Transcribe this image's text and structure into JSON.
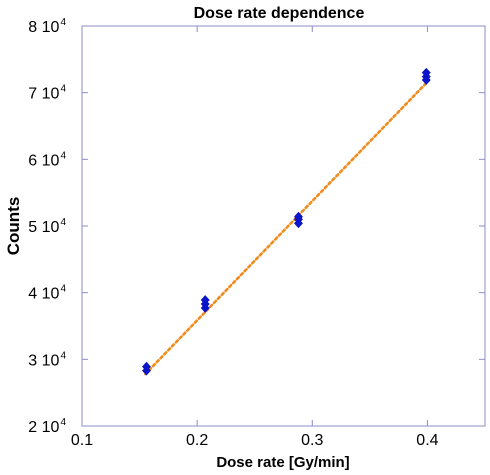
{
  "chart_data": {
    "type": "scatter",
    "title": "Dose rate dependence",
    "xlabel": "Dose rate [Gy/min]",
    "ylabel": "Counts",
    "xlim": [
      0.1,
      0.45
    ],
    "ylim": [
      20000,
      80000
    ],
    "x_ticks": [
      {
        "value": 0.1,
        "label": "0.1"
      },
      {
        "value": 0.2,
        "label": "0.2"
      },
      {
        "value": 0.3,
        "label": "0.3"
      },
      {
        "value": 0.4,
        "label": "0.4"
      }
    ],
    "y_ticks": [
      {
        "value": 20000,
        "mantissa": "2 10",
        "exp": "4"
      },
      {
        "value": 30000,
        "mantissa": "3 10",
        "exp": "4"
      },
      {
        "value": 40000,
        "mantissa": "4 10",
        "exp": "4"
      },
      {
        "value": 50000,
        "mantissa": "5 10",
        "exp": "4"
      },
      {
        "value": 60000,
        "mantissa": "6 10",
        "exp": "4"
      },
      {
        "value": 70000,
        "mantissa": "7 10",
        "exp": "4"
      },
      {
        "value": 80000,
        "mantissa": "8 10",
        "exp": "4"
      }
    ],
    "grid": false,
    "series": [
      {
        "marker": "diamond",
        "color": "#0a14c8",
        "points": [
          {
            "x": 0.156,
            "y": 28300
          },
          {
            "x": 0.156,
            "y": 28900
          },
          {
            "x": 0.207,
            "y": 37700
          },
          {
            "x": 0.207,
            "y": 38300
          },
          {
            "x": 0.207,
            "y": 38900
          },
          {
            "x": 0.288,
            "y": 50400
          },
          {
            "x": 0.288,
            "y": 51000
          },
          {
            "x": 0.288,
            "y": 51400
          },
          {
            "x": 0.399,
            "y": 71900
          },
          {
            "x": 0.399,
            "y": 72400
          },
          {
            "x": 0.399,
            "y": 73000
          }
        ]
      }
    ],
    "fit_line": {
      "color": "#f08c1e",
      "style": "dotted",
      "x": [
        0.155,
        0.401
      ],
      "y": [
        27800,
        71800
      ]
    },
    "frame_color": "#8c8cc8"
  }
}
